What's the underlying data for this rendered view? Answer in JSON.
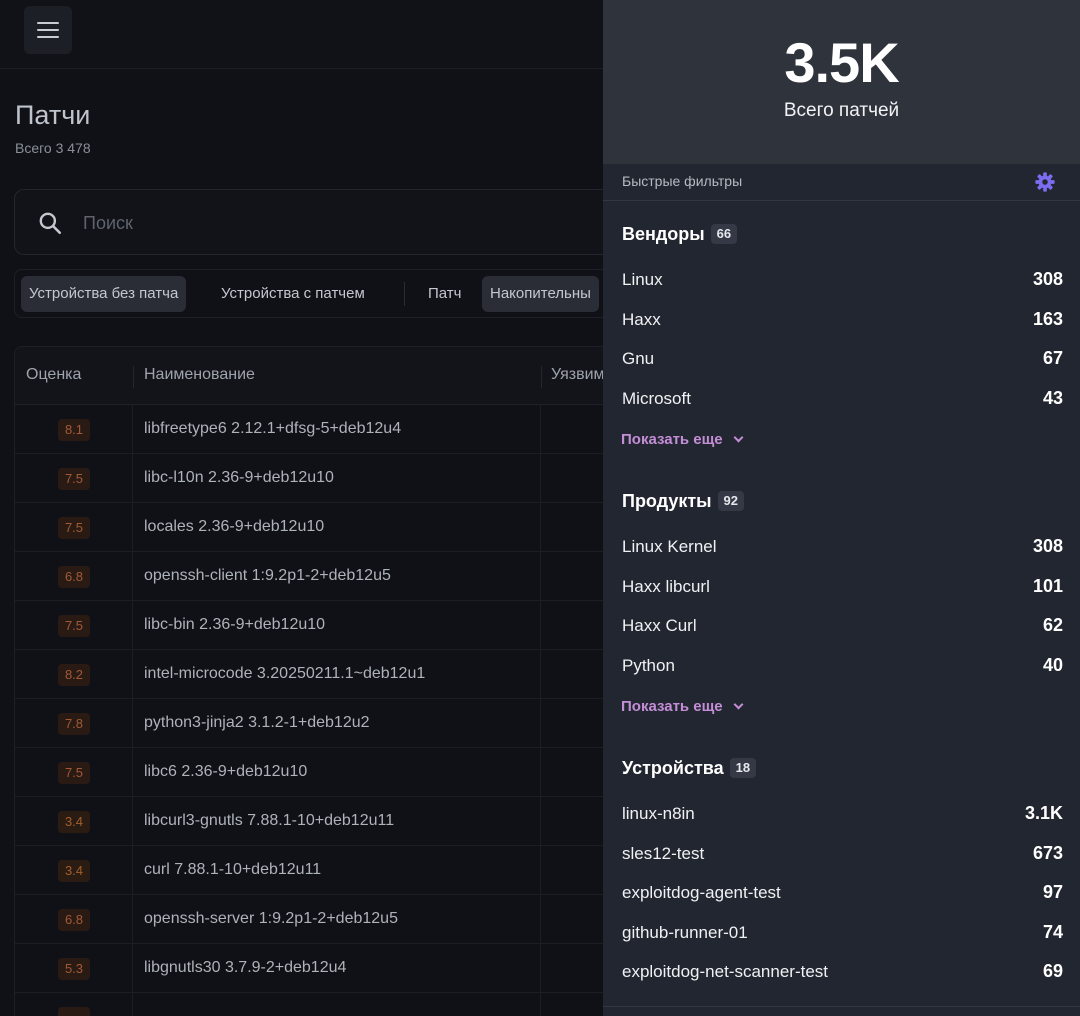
{
  "header": {
    "title": "Патчи",
    "subtitle": "Всего 3 478"
  },
  "search": {
    "placeholder": "Поиск"
  },
  "filter_chips": [
    {
      "label": "Устройства без патча",
      "active": true
    },
    {
      "label": "Устройства с патчем",
      "active": false
    },
    {
      "label": "Патч",
      "active": false
    },
    {
      "label": "Накопительны",
      "active": true
    }
  ],
  "table": {
    "columns": [
      "Оценка",
      "Наименование",
      "Уязвим"
    ],
    "rows": [
      {
        "score": "8.1",
        "name": "libfreetype6 2.12.1+dfsg-5+deb12u4"
      },
      {
        "score": "7.5",
        "name": "libc-l10n 2.36-9+deb12u10"
      },
      {
        "score": "7.5",
        "name": "locales 2.36-9+deb12u10"
      },
      {
        "score": "6.8",
        "name": "openssh-client 1:9.2p1-2+deb12u5"
      },
      {
        "score": "7.5",
        "name": "libc-bin 2.36-9+deb12u10"
      },
      {
        "score": "8.2",
        "name": "intel-microcode 3.20250211.1~deb12u1"
      },
      {
        "score": "7.8",
        "name": "python3-jinja2 3.1.2-1+deb12u2"
      },
      {
        "score": "7.5",
        "name": "libc6 2.36-9+deb12u10"
      },
      {
        "score": "3.4",
        "name": "libcurl3-gnutls 7.88.1-10+deb12u11"
      },
      {
        "score": "3.4",
        "name": "curl 7.88.1-10+deb12u11"
      },
      {
        "score": "6.8",
        "name": "openssh-server 1:9.2p1-2+deb12u5"
      },
      {
        "score": "5.3",
        "name": "libgnutls30 3.7.9-2+deb12u4"
      },
      {
        "score": "",
        "name": ""
      }
    ]
  },
  "panel": {
    "hero_value": "3.5K",
    "hero_label": "Всего патчей",
    "quick_filters_label": "Быстрые фильтры",
    "sections": [
      {
        "title": "Вендоры",
        "count": "66",
        "items": [
          {
            "label": "Linux",
            "count": "308"
          },
          {
            "label": "Haxx",
            "count": "163"
          },
          {
            "label": "Gnu",
            "count": "67"
          },
          {
            "label": "Microsoft",
            "count": "43"
          }
        ],
        "more": "Показать еще"
      },
      {
        "title": "Продукты",
        "count": "92",
        "items": [
          {
            "label": "Linux Kernel",
            "count": "308"
          },
          {
            "label": "Haxx libcurl",
            "count": "101"
          },
          {
            "label": "Haxx Curl",
            "count": "62"
          },
          {
            "label": "Python",
            "count": "40"
          }
        ],
        "more": "Показать еще"
      },
      {
        "title": "Устройства",
        "count": "18",
        "items": [
          {
            "label": "linux-n8in",
            "count": "3.1K"
          },
          {
            "label": "sles12-test",
            "count": "673"
          },
          {
            "label": "exploitdog-agent-test",
            "count": "97"
          },
          {
            "label": "github-runner-01",
            "count": "74"
          },
          {
            "label": "exploitdog-net-scanner-test",
            "count": "69"
          }
        ]
      }
    ]
  },
  "colors": {
    "accent": "#c48ed6",
    "gear": "#7b6cf0",
    "score_badge_bg": "#2a1a14",
    "score_badge_text": "#a25a36"
  }
}
